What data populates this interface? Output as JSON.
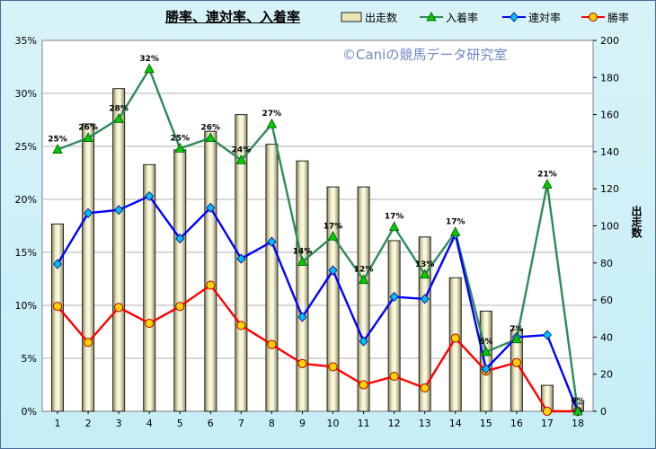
{
  "title": "勝率、連対率、入着率",
  "watermark": "©Caniの競馬データ研究室",
  "chart_data": {
    "type": "bar",
    "categories": [
      "1",
      "2",
      "3",
      "4",
      "5",
      "6",
      "7",
      "8",
      "9",
      "10",
      "11",
      "12",
      "13",
      "14",
      "15",
      "16",
      "17",
      "18"
    ],
    "legend": [
      "出走数",
      "入着率",
      "連対率",
      "勝率"
    ],
    "y_left_ticks": [
      "0%",
      "5%",
      "10%",
      "15%",
      "20%",
      "25%",
      "30%",
      "35%"
    ],
    "y_right_ticks": [
      "0",
      "20",
      "40",
      "60",
      "80",
      "100",
      "120",
      "140",
      "160",
      "180",
      "200"
    ],
    "y_left_lim": [
      0,
      35
    ],
    "y_right_lim": [
      0,
      200
    ],
    "y_right_label": "出走数",
    "series": [
      {
        "name": "出走数",
        "type": "bar",
        "axis": "right",
        "color": "#e9e6b8",
        "values": [
          101,
          155,
          174,
          133,
          141,
          151,
          160,
          144,
          135,
          121,
          121,
          92,
          94,
          72,
          54,
          44,
          14,
          4
        ]
      },
      {
        "name": "入着率",
        "type": "line",
        "axis": "left",
        "color": "#2e8b57",
        "marker": "triangle",
        "values": [
          24.7,
          25.8,
          27.6,
          32.3,
          24.8,
          25.8,
          23.7,
          27.1,
          14.1,
          16.5,
          12.4,
          17.4,
          12.9,
          16.9,
          5.6,
          6.8,
          21.4,
          0
        ],
        "data_labels": [
          "25%",
          "26%",
          "28%",
          "32%",
          "25%",
          "26%",
          "24%",
          "27%",
          "14%",
          "17%",
          "12%",
          "17%",
          "13%",
          "17%",
          "6%",
          "7%",
          "21%",
          "0%"
        ]
      },
      {
        "name": "連対率",
        "type": "line",
        "axis": "left",
        "color": "#0000ff",
        "marker": "diamond",
        "values": [
          13.9,
          18.7,
          19.0,
          20.3,
          16.3,
          19.2,
          14.4,
          16.0,
          8.9,
          13.3,
          6.6,
          10.8,
          10.6,
          16.7,
          4.0,
          7.0,
          7.2,
          0
        ]
      },
      {
        "name": "勝率",
        "type": "line",
        "axis": "left",
        "color": "#ff0000",
        "marker": "circle",
        "values": [
          9.9,
          6.5,
          9.8,
          8.3,
          9.9,
          11.9,
          8.1,
          6.3,
          4.5,
          4.2,
          2.5,
          3.3,
          2.2,
          6.9,
          3.8,
          4.6,
          0,
          0
        ]
      }
    ]
  }
}
